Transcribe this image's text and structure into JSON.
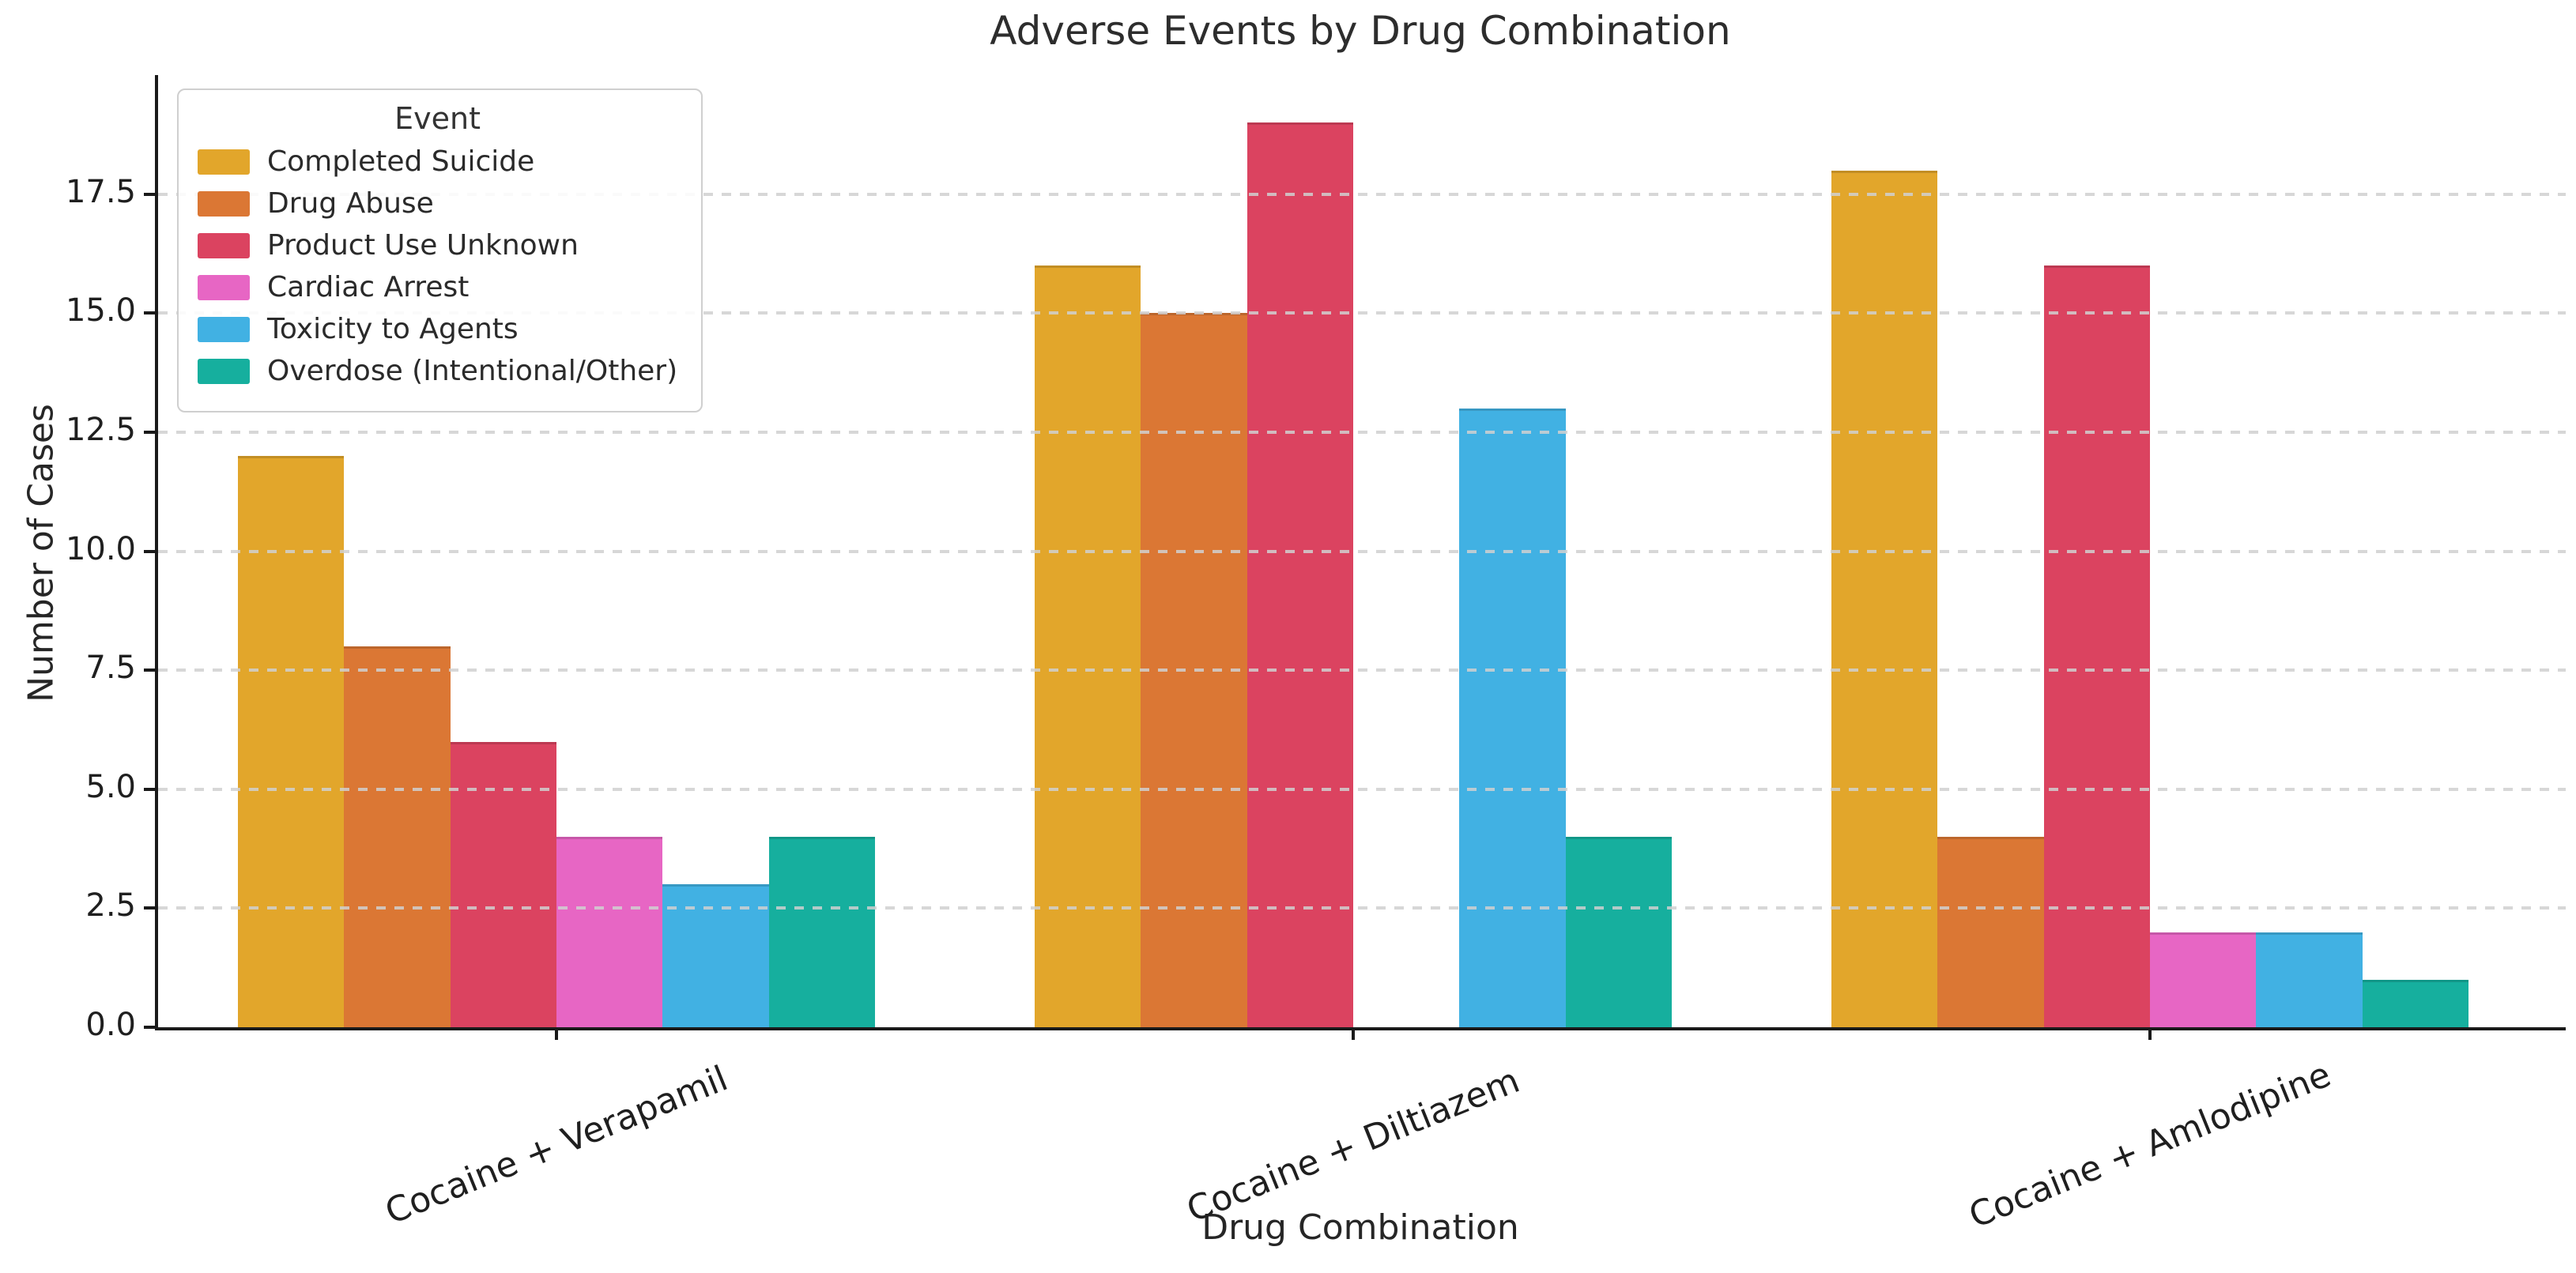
{
  "chart_data": {
    "type": "bar",
    "title": "Adverse Events by Drug Combination",
    "xlabel": "Drug Combination",
    "ylabel": "Number of Cases",
    "legend_title": "Event",
    "legend_position": "upper left",
    "grid": "horizontal dashed light-gray, drawn over bars",
    "categories": [
      "Cocaine + Verapamil",
      "Cocaine + Diltiazem",
      "Cocaine + Amlodipine"
    ],
    "series": [
      {
        "name": "Completed Suicide",
        "color": "#E2A62B",
        "values": [
          12,
          16,
          18
        ]
      },
      {
        "name": "Drug Abuse",
        "color": "#DB7734",
        "values": [
          8,
          15,
          4
        ]
      },
      {
        "name": "Product Use Unknown",
        "color": "#DB4360",
        "values": [
          6,
          19,
          16
        ]
      },
      {
        "name": "Cardiac Arrest",
        "color": "#E766C4",
        "values": [
          4,
          0,
          2
        ]
      },
      {
        "name": "Toxicity to Agents",
        "color": "#41B1E3",
        "values": [
          3,
          13,
          2
        ]
      },
      {
        "name": "Overdose (Intentional/Other)",
        "color": "#16AF9E",
        "values": [
          4,
          4,
          1
        ]
      }
    ],
    "yticks": [
      "0.0",
      "2.5",
      "5.0",
      "7.5",
      "10.0",
      "12.5",
      "15.0",
      "17.5"
    ],
    "ylim": [
      0,
      20
    ],
    "x_tick_rotation_deg": 22
  }
}
